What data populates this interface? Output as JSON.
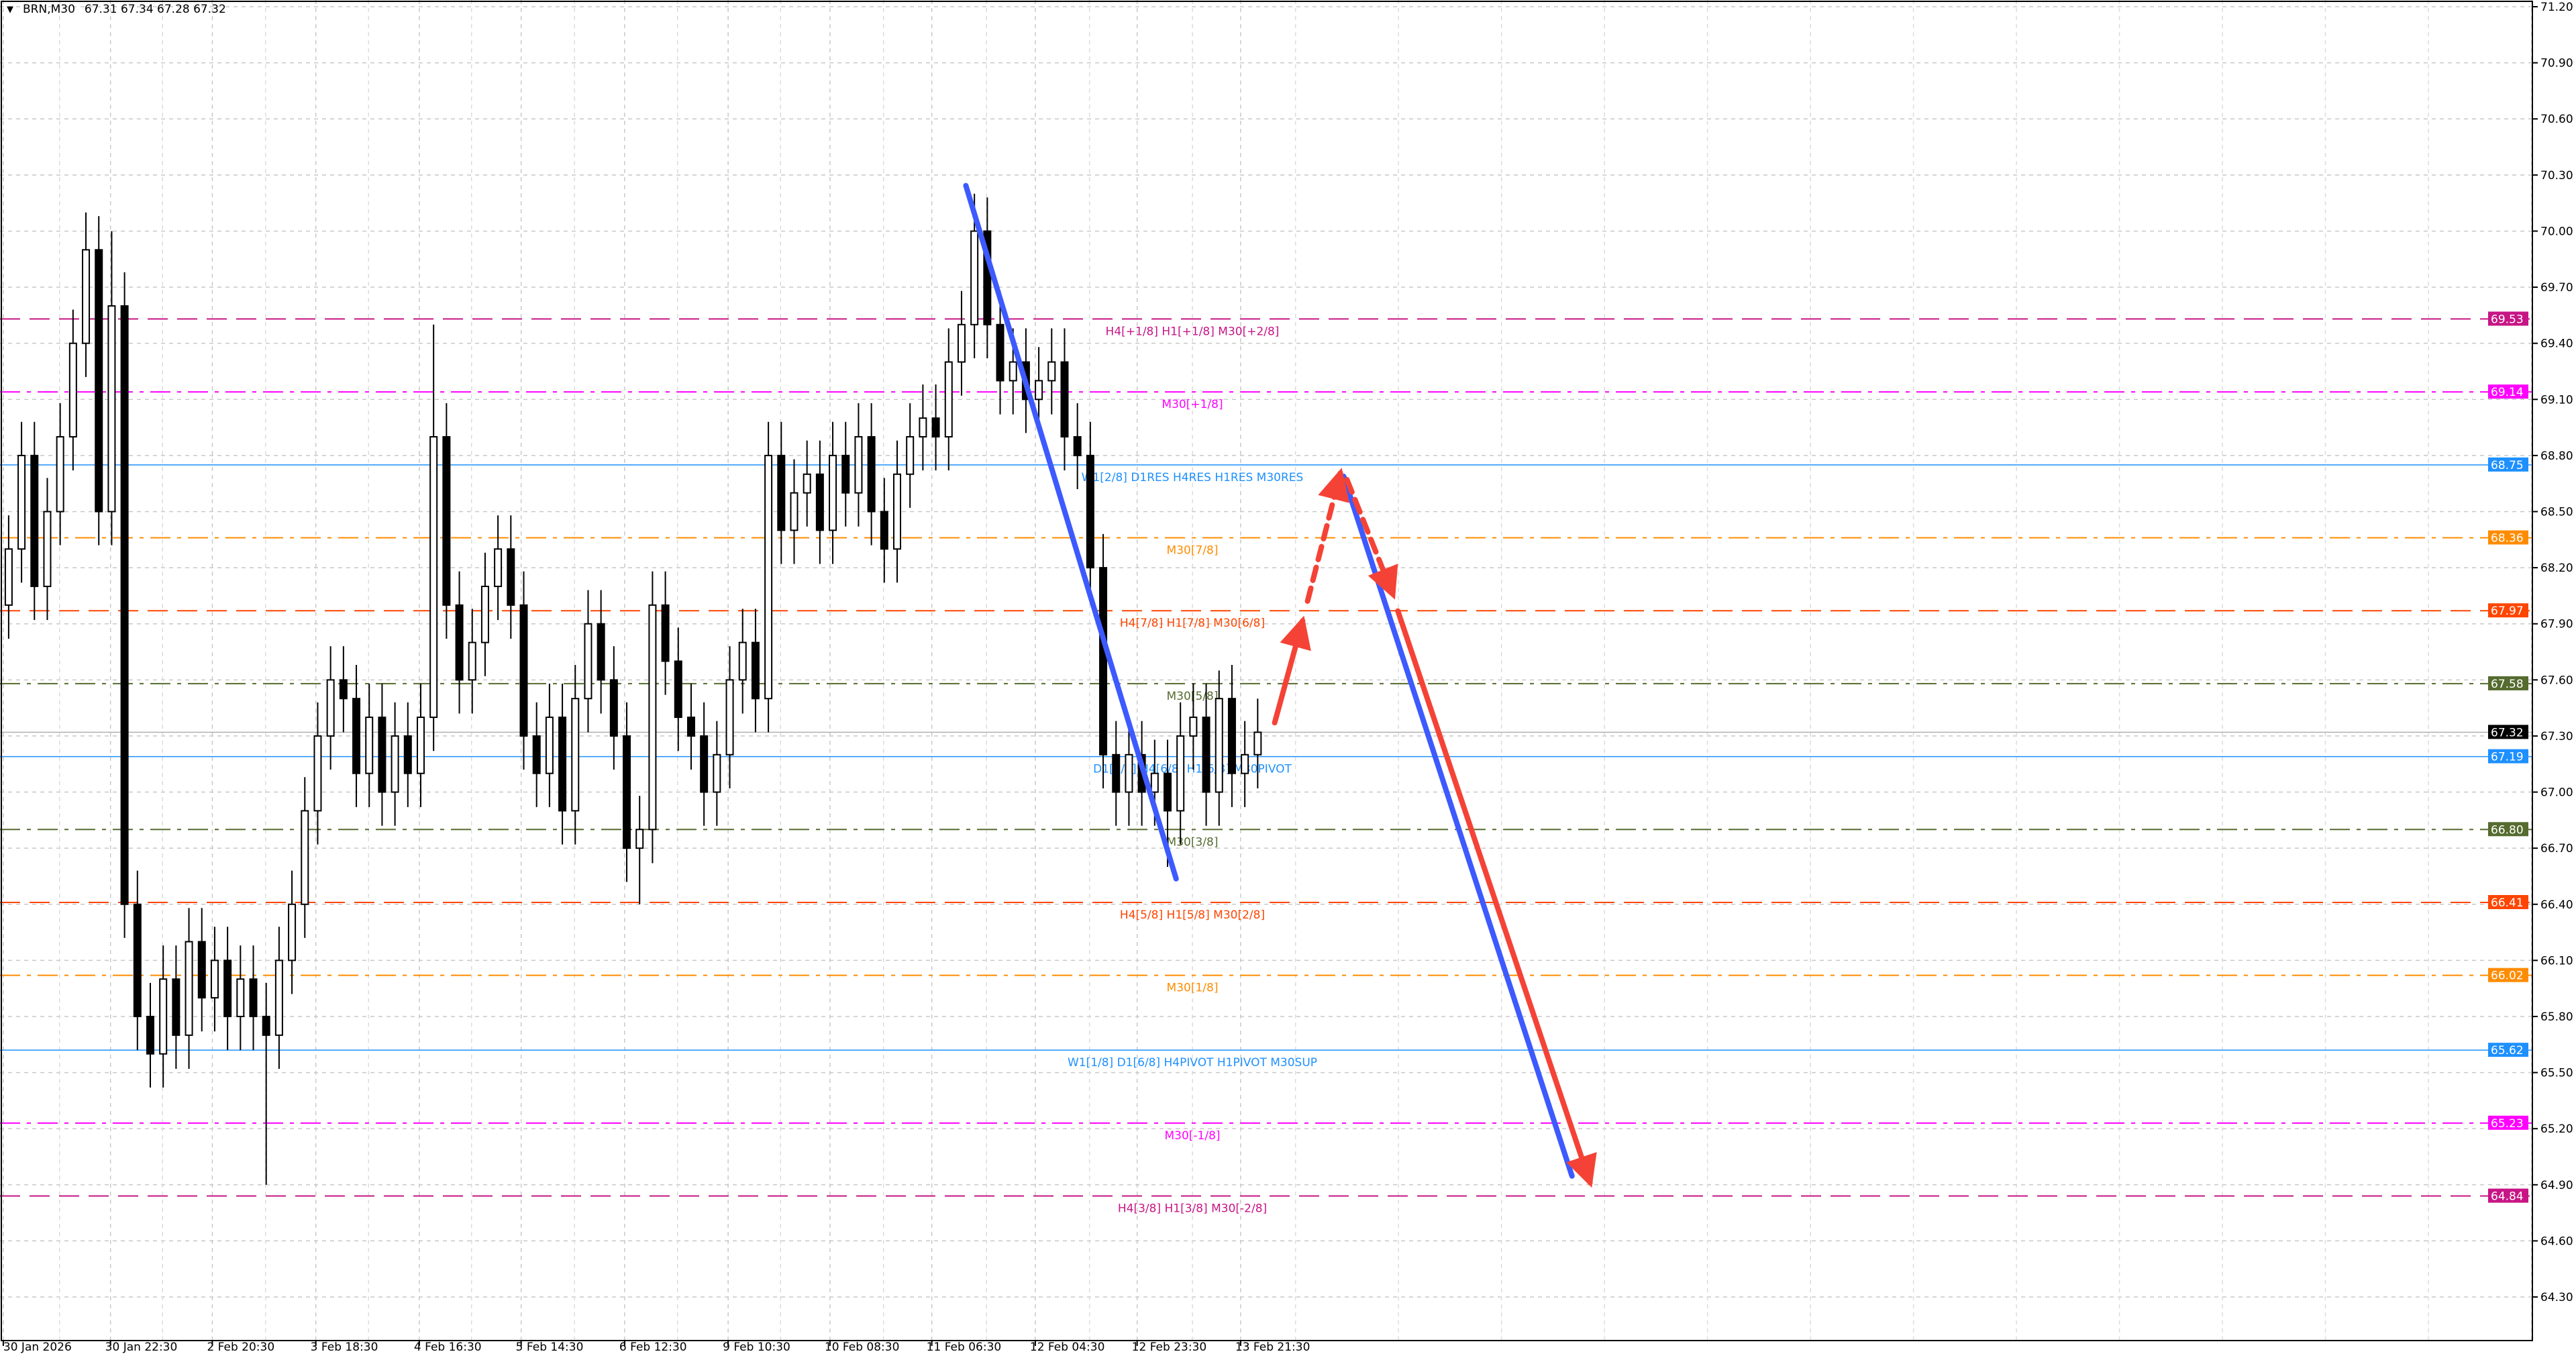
{
  "header": {
    "symbol": "BRN,M30",
    "ohlc": "67.31 67.34 67.28 67.32",
    "menu_icon": "triangle-down-icon"
  },
  "chart_data": {
    "type": "candlestick",
    "symbol": "BRN",
    "timeframe": "M30",
    "ylim": [
      64.1,
      71.2
    ],
    "yticks": [
      "71.20",
      "70.90",
      "70.60",
      "70.30",
      "70.00",
      "69.70",
      "69.40",
      "69.10",
      "68.80",
      "68.50",
      "68.20",
      "67.90",
      "67.60",
      "67.30",
      "67.00",
      "66.70",
      "66.40",
      "66.10",
      "65.80",
      "65.50",
      "65.20",
      "64.90",
      "64.60",
      "64.30"
    ],
    "xticks": [
      "30 Jan 2026",
      "30 Jan 22:30",
      "2 Feb 20:30",
      "3 Feb 18:30",
      "4 Feb 16:30",
      "5 Feb 14:30",
      "6 Feb 12:30",
      "9 Feb 10:30",
      "10 Feb 08:30",
      "11 Feb 06:30",
      "12 Feb 04:30",
      "12 Feb 23:30",
      "13 Feb 21:30"
    ],
    "grid": true,
    "close": [
      68.3,
      68.8,
      68.1,
      68.5,
      68.9,
      69.4,
      69.9,
      68.5,
      69.6,
      66.4,
      65.8,
      65.6,
      66.0,
      65.7,
      66.2,
      65.9,
      66.1,
      65.8,
      66.0,
      65.8,
      65.7,
      66.1,
      66.4,
      66.9,
      67.3,
      67.6,
      67.5,
      67.1,
      67.4,
      67.0,
      67.3,
      67.1,
      67.4,
      68.9,
      68.0,
      67.6,
      67.8,
      68.1,
      68.3,
      68.0,
      67.3,
      67.1,
      67.4,
      66.9,
      67.5,
      67.9,
      67.6,
      67.3,
      66.7,
      66.8,
      68.0,
      67.7,
      67.4,
      67.3,
      67.0,
      67.2,
      67.6,
      67.8,
      67.5,
      68.8,
      68.4,
      68.6,
      68.7,
      68.4,
      68.8,
      68.6,
      68.9,
      68.5,
      68.3,
      68.7,
      68.9,
      69.0,
      68.9,
      69.3,
      69.5,
      70.0,
      69.5,
      69.2,
      69.3,
      69.1,
      69.2,
      69.3,
      68.9,
      68.8,
      68.2,
      67.2,
      67.0,
      67.2,
      67.0,
      67.1,
      66.9,
      67.3,
      67.4,
      67.0,
      67.5,
      67.1,
      67.2,
      67.32
    ],
    "extremes": [
      {
        "bar": 6,
        "high": 70.1
      },
      {
        "bar": 8,
        "high": 70.0
      },
      {
        "bar": 20,
        "low": 64.9
      },
      {
        "bar": 33,
        "high": 69.5
      },
      {
        "bar": 49,
        "low": 66.4
      },
      {
        "bar": 75,
        "high": 70.2
      },
      {
        "bar": 90,
        "low": 66.6
      },
      {
        "bar": 94,
        "high": 67.65
      }
    ],
    "current_price": {
      "value": 67.32,
      "label": "67.32",
      "color": "#000000"
    },
    "levels": [
      {
        "price": 69.53,
        "value_label": "69.53",
        "label": "H4[+1/8] H1[+1/8] M30[+2/8]",
        "color": "#C71585",
        "style": "dashed"
      },
      {
        "price": 69.14,
        "value_label": "69.14",
        "label": "M30[+1/8]",
        "color": "#FF00FF",
        "style": "dashdot"
      },
      {
        "price": 68.75,
        "value_label": "68.75",
        "label": "W1[2/8] D1RES H4RES H1RES M30RES",
        "color": "#1E90FF",
        "style": "solid"
      },
      {
        "price": 68.36,
        "value_label": "68.36",
        "label": "M30[7/8]",
        "color": "#FF8C00",
        "style": "dashdot"
      },
      {
        "price": 67.97,
        "value_label": "67.97",
        "label": "H4[7/8] H1[7/8] M30[6/8]",
        "color": "#FF4500",
        "style": "dashed"
      },
      {
        "price": 67.58,
        "value_label": "67.58",
        "label": "M30[5/8]",
        "color": "#556B2F",
        "style": "dashdot"
      },
      {
        "price": 67.19,
        "value_label": "67.19",
        "label": "D1[7/8] H4[6/8] H1[6/8] M30PIVOT",
        "color": "#1E90FF",
        "style": "solid"
      },
      {
        "price": 66.8,
        "value_label": "66.80",
        "label": "M30[3/8]",
        "color": "#556B2F",
        "style": "dashdot"
      },
      {
        "price": 66.41,
        "value_label": "66.41",
        "label": "H4[5/8] H1[5/8] M30[2/8]",
        "color": "#FF4500",
        "style": "dashed"
      },
      {
        "price": 66.02,
        "value_label": "66.02",
        "label": "M30[1/8]",
        "color": "#FF8C00",
        "style": "dashdot"
      },
      {
        "price": 65.62,
        "value_label": "65.62",
        "label": "W1[1/8] D1[6/8] H4PIVOT H1PIVOT M30SUP",
        "color": "#1E90FF",
        "style": "solid"
      },
      {
        "price": 65.23,
        "value_label": "65.23",
        "label": "M30[-1/8]",
        "color": "#FF00FF",
        "style": "dashdot"
      },
      {
        "price": 64.84,
        "value_label": "64.84",
        "label": "H4[3/8] H1[3/8] M30[-2/8]",
        "color": "#C71585",
        "style": "dashed"
      }
    ],
    "drawing_colors": {
      "trend_blue": "#3D5AFE",
      "forecast_red": "#F44336"
    }
  }
}
